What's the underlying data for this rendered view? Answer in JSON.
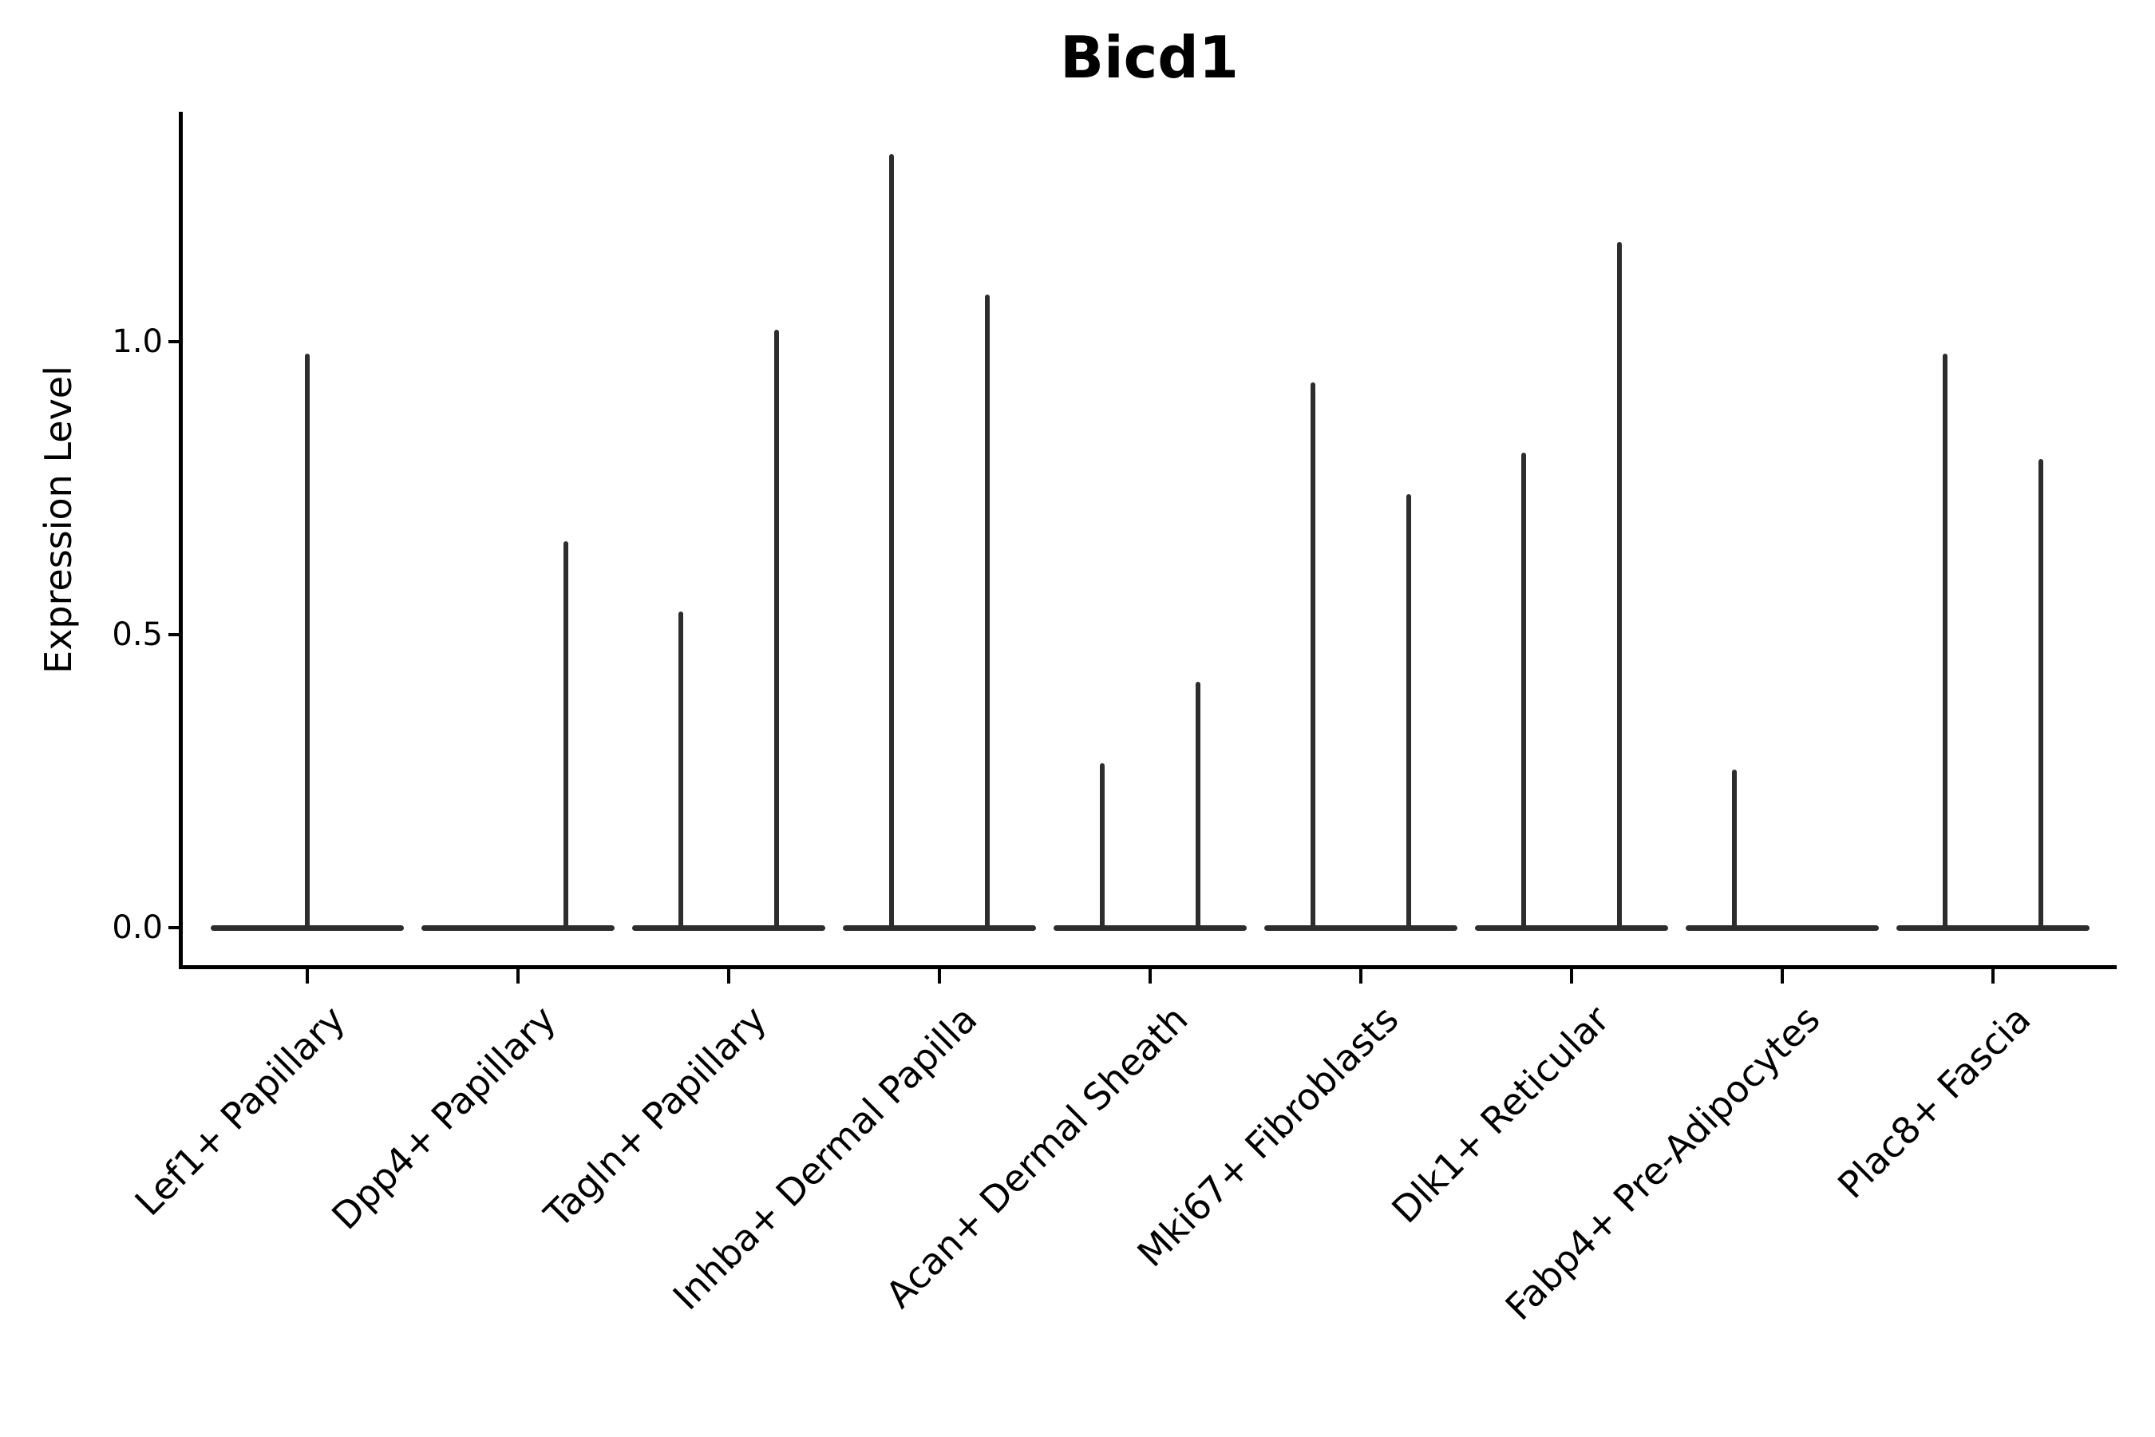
{
  "figure": {
    "title": "Bicd1"
  },
  "axes": {
    "ylabel": "Expression Level"
  },
  "chart_data": {
    "type": "violin",
    "title": "Bicd1",
    "xlabel": "",
    "ylabel": "Expression Level",
    "ylim": [
      -0.06,
      1.39
    ],
    "grid": false,
    "legend": "none",
    "violin_color": "#2d2d2d",
    "axis_color": "#000000",
    "yticks": [
      {
        "value": 0.0,
        "label": "0.0"
      },
      {
        "value": 0.5,
        "label": "0.5"
      },
      {
        "value": 1.0,
        "label": "1.0"
      }
    ],
    "categories": [
      "Lef1+ Papillary",
      "Dpp4+ Papillary",
      "Tagln+ Papillary",
      "Inhba+ Dermal Papilla",
      "Acan+ Dermal Sheath",
      "Mki67+ Fibroblasts",
      "Dlk1+ Reticular",
      "Fabp4+ Pre-Adipocytes",
      "Plac8+ Fascia"
    ],
    "baseline_value": 0,
    "violins": [
      {
        "category": "Lef1+ Papillary",
        "spikes": [
          {
            "position": "center",
            "max": 0.98
          }
        ]
      },
      {
        "category": "Dpp4+ Papillary",
        "spikes": [
          {
            "position": "right",
            "max": 0.66
          }
        ]
      },
      {
        "category": "Tagln+ Papillary",
        "spikes": [
          {
            "position": "left",
            "max": 0.54
          },
          {
            "position": "right",
            "max": 1.02
          }
        ]
      },
      {
        "category": "Inhba+ Dermal Papilla",
        "spikes": [
          {
            "position": "left",
            "max": 1.32
          },
          {
            "position": "right",
            "max": 1.08
          }
        ]
      },
      {
        "category": "Acan+ Dermal Sheath",
        "spikes": [
          {
            "position": "left",
            "max": 0.28
          },
          {
            "position": "right",
            "max": 0.42
          }
        ]
      },
      {
        "category": "Mki67+ Fibroblasts",
        "spikes": [
          {
            "position": "left",
            "max": 0.93
          },
          {
            "position": "right",
            "max": 0.74
          }
        ]
      },
      {
        "category": "Dlk1+ Reticular",
        "spikes": [
          {
            "position": "left",
            "max": 0.81
          },
          {
            "position": "right",
            "max": 1.17
          }
        ]
      },
      {
        "category": "Fabp4+ Pre-Adipocytes",
        "spikes": [
          {
            "position": "left",
            "max": 0.27
          }
        ]
      },
      {
        "category": "Plac8+ Fascia",
        "spikes": [
          {
            "position": "left",
            "max": 0.98
          },
          {
            "position": "right",
            "max": 0.8
          }
        ]
      }
    ]
  }
}
